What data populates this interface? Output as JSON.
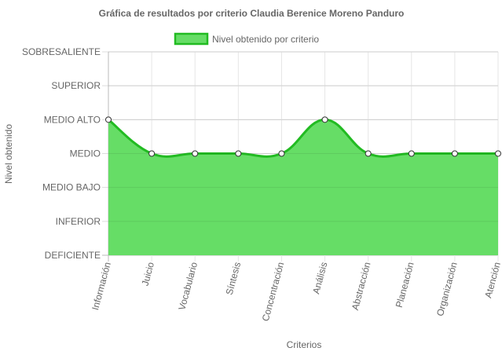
{
  "chart_data": {
    "type": "area",
    "title": "Gráfica de resultados por criterio Claudia Berenice Moreno Panduro",
    "xlabel": "Criterios",
    "ylabel": "Nivel obtenido",
    "y_levels": [
      "DEFICIENTE",
      "INFERIOR",
      "MEDIO BAJO",
      "MEDIO",
      "MEDIO ALTO",
      "SUPERIOR",
      "SOBRESALIENTE"
    ],
    "ylim": [
      0,
      6
    ],
    "categories": [
      "Información",
      "Juicio",
      "Vocabulario",
      "Síntesis",
      "Concentración",
      "Análisis",
      "Abstracción",
      "Planeación",
      "Organización",
      "Atención"
    ],
    "series": [
      {
        "name": "Nivel obtenido por criterio",
        "values": [
          4,
          3,
          3,
          3,
          3,
          4,
          3,
          3,
          3,
          3
        ],
        "fill_color": "#66dd66",
        "line_color": "#22bb22"
      }
    ],
    "legend_position": "top",
    "grid": true
  }
}
